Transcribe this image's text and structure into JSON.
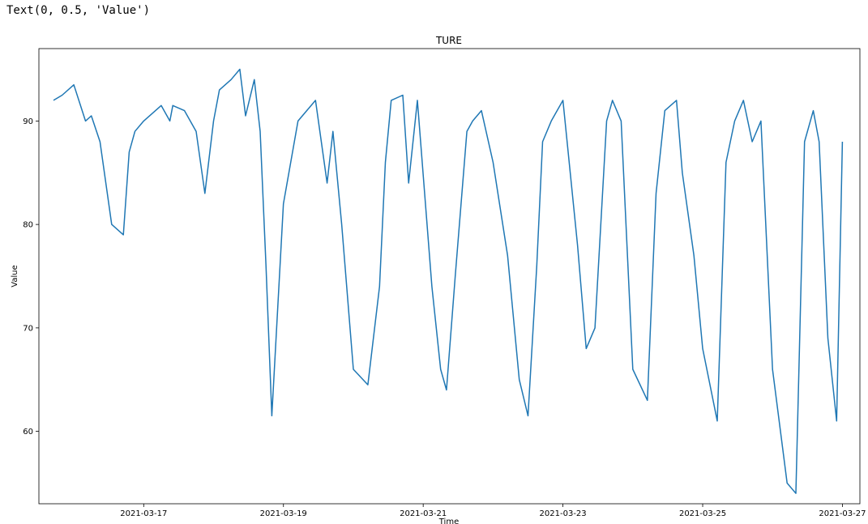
{
  "output_text": "Text(0, 0.5, 'Value')",
  "chart_data": {
    "type": "line",
    "title": "TURE",
    "xlabel": "Time",
    "ylabel": "Value",
    "x_range": [
      "2021-03-15T12:00",
      "2021-03-27T06:00"
    ],
    "ylim": [
      53,
      97
    ],
    "grid": false,
    "color": "#1f77b4",
    "x_ticks": [
      "2021-03-17",
      "2021-03-19",
      "2021-03-21",
      "2021-03-23",
      "2021-03-25",
      "2021-03-27"
    ],
    "y_ticks": [
      60,
      70,
      80,
      90
    ],
    "series": [
      {
        "x": [
          "2021-03-15T17:00",
          "2021-03-15T20:00",
          "2021-03-16T00:00",
          "2021-03-16T04:00",
          "2021-03-16T06:00",
          "2021-03-16T09:00",
          "2021-03-16T13:00",
          "2021-03-16T17:00",
          "2021-03-16T19:00",
          "2021-03-16T21:00",
          "2021-03-17T00:00",
          "2021-03-17T06:00",
          "2021-03-17T09:00",
          "2021-03-17T10:00",
          "2021-03-17T14:00",
          "2021-03-17T18:00",
          "2021-03-17T21:00",
          "2021-03-18T00:00",
          "2021-03-18T02:00",
          "2021-03-18T06:00",
          "2021-03-18T09:00",
          "2021-03-18T11:00",
          "2021-03-18T14:00",
          "2021-03-18T16:00",
          "2021-03-18T18:00",
          "2021-03-18T20:00",
          "2021-03-19T00:00",
          "2021-03-19T05:00",
          "2021-03-19T08:00",
          "2021-03-19T11:00",
          "2021-03-19T15:00",
          "2021-03-19T17:00",
          "2021-03-19T20:00",
          "2021-03-20T00:00",
          "2021-03-20T05:00",
          "2021-03-20T09:00",
          "2021-03-20T11:00",
          "2021-03-20T13:00",
          "2021-03-20T17:00",
          "2021-03-20T19:00",
          "2021-03-20T22:00",
          "2021-03-21T03:00",
          "2021-03-21T06:00",
          "2021-03-21T08:00",
          "2021-03-21T11:00",
          "2021-03-21T15:00",
          "2021-03-21T17:00",
          "2021-03-21T20:00",
          "2021-03-22T00:00",
          "2021-03-22T05:00",
          "2021-03-22T09:00",
          "2021-03-22T12:00",
          "2021-03-22T15:00",
          "2021-03-22T17:00",
          "2021-03-22T20:00",
          "2021-03-23T00:00",
          "2021-03-23T05:00",
          "2021-03-23T08:00",
          "2021-03-23T11:00",
          "2021-03-23T15:00",
          "2021-03-23T17:00",
          "2021-03-23T20:00",
          "2021-03-24T00:00",
          "2021-03-24T05:00",
          "2021-03-24T08:00",
          "2021-03-24T11:00",
          "2021-03-24T15:00",
          "2021-03-24T17:00",
          "2021-03-24T21:00",
          "2021-03-25T00:00",
          "2021-03-25T05:00",
          "2021-03-25T08:00",
          "2021-03-25T11:00",
          "2021-03-25T14:00",
          "2021-03-25T17:00",
          "2021-03-25T20:00",
          "2021-03-26T00:00",
          "2021-03-26T05:00",
          "2021-03-26T08:00",
          "2021-03-26T11:00",
          "2021-03-26T14:00",
          "2021-03-26T16:00",
          "2021-03-26T19:00",
          "2021-03-26T22:00",
          "2021-03-27T00:00"
        ],
        "y": [
          92,
          92.5,
          93.5,
          90,
          90.5,
          88,
          80,
          79,
          87,
          89,
          90,
          91.5,
          90,
          91.5,
          91,
          89,
          83,
          90,
          93,
          94,
          95,
          90.5,
          94,
          89,
          76,
          61.5,
          82,
          90,
          91,
          92,
          84,
          89,
          80,
          66,
          64.5,
          74,
          86,
          92,
          92.5,
          84,
          92,
          74,
          66,
          64,
          75,
          89,
          90,
          91,
          86,
          77,
          65,
          61.5,
          76,
          88,
          90,
          92,
          78,
          68,
          70,
          90,
          92,
          90,
          66,
          63,
          83,
          91,
          92,
          85,
          77,
          68,
          61,
          86,
          90,
          92,
          88,
          90,
          66,
          55,
          54,
          88,
          91,
          88,
          69,
          61,
          88
        ]
      }
    ]
  }
}
